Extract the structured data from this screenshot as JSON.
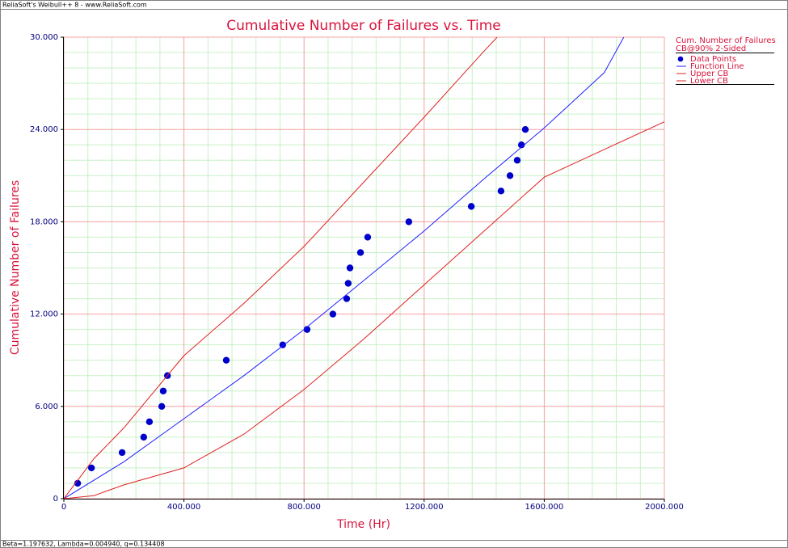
{
  "window_title": "ReliaSoft's Weibull++ 8 - www.ReliaSoft.com",
  "status_bar": "Beta=1.197632, Lambda=0.004940, q=0.134408",
  "chart_data": {
    "type": "line",
    "title": "Cumulative Number of Failures vs. Time",
    "x_label": "Time (Hr)",
    "y_label": "Cumulative Number of Failures",
    "legend_title": "Cum. Number of Failures",
    "legend_subtitle": "CB@90% 2-Sided",
    "legend_position": "right",
    "grid": true,
    "xlim": [
      0,
      2000
    ],
    "ylim": [
      0,
      30
    ],
    "xticks": [
      0,
      {
        "value": 400,
        "label": "400.000"
      },
      {
        "value": 800,
        "label": "800.000"
      },
      {
        "value": 1200,
        "label": "1200.000"
      },
      {
        "value": 1600,
        "label": "1600.000"
      },
      {
        "value": 2000,
        "label": "2000.000"
      }
    ],
    "yticks": [
      0,
      {
        "value": 6,
        "label": "6.000"
      },
      {
        "value": 12,
        "label": "12.000"
      },
      {
        "value": 18,
        "label": "18.000"
      },
      {
        "value": 24,
        "label": "24.000"
      },
      {
        "value": 30,
        "label": "30.000"
      }
    ],
    "x_minor_ticks": [
      80,
      160,
      240,
      320,
      480,
      560,
      640,
      720,
      880,
      960,
      1040,
      1120,
      1280,
      1360,
      1440,
      1520,
      1680,
      1760,
      1840,
      1920
    ],
    "y_minor_ticks": [
      1,
      2,
      3,
      4,
      5,
      7,
      8,
      9,
      10,
      11,
      13,
      14,
      15,
      16,
      17,
      19,
      20,
      21,
      22,
      23,
      25,
      26,
      27,
      28,
      29
    ],
    "major_grid_color": "#f4a0a0",
    "minor_grid_color": "#c8f0c8",
    "series": [
      {
        "name": "Data Points",
        "style": "markers",
        "color": "#0000cc",
        "x": [
          46,
          92,
          194,
          266,
          285,
          326,
          331,
          345,
          541,
          729,
          810,
          896,
          942,
          947,
          953,
          988,
          1012,
          1149,
          1357,
          1456,
          1486,
          1510,
          1524,
          1537
        ],
        "values": [
          1,
          2,
          3,
          4,
          5,
          6,
          7,
          8,
          9,
          10,
          11,
          12,
          13,
          14,
          15,
          16,
          17,
          18,
          19,
          20,
          21,
          22,
          23,
          24
        ]
      },
      {
        "name": "Function Line",
        "style": "line",
        "color": "#2020ff",
        "x": [
          0,
          200,
          400,
          600,
          800,
          1000,
          1200,
          1400,
          1600,
          1800,
          1865
        ],
        "values": [
          0,
          2.4,
          5.2,
          8.0,
          11.0,
          14.2,
          17.4,
          20.8,
          24.1,
          27.7,
          30
        ]
      },
      {
        "name": "Upper CB",
        "style": "line",
        "color": "#e02020",
        "x": [
          0,
          100,
          200,
          400,
          600,
          800,
          1000,
          1200,
          1400,
          1443
        ],
        "values": [
          0,
          2.6,
          4.6,
          9.3,
          12.7,
          16.4,
          20.6,
          24.8,
          29.1,
          30
        ]
      },
      {
        "name": "Lower CB",
        "style": "line",
        "color": "#e02020",
        "x": [
          0,
          100,
          200,
          400,
          600,
          800,
          1000,
          1200,
          1400,
          1600,
          1800,
          2000
        ],
        "values": [
          0,
          0.2,
          0.9,
          2.0,
          4.2,
          7.1,
          10.4,
          13.9,
          17.4,
          20.9,
          22.7,
          24.5
        ]
      }
    ]
  }
}
